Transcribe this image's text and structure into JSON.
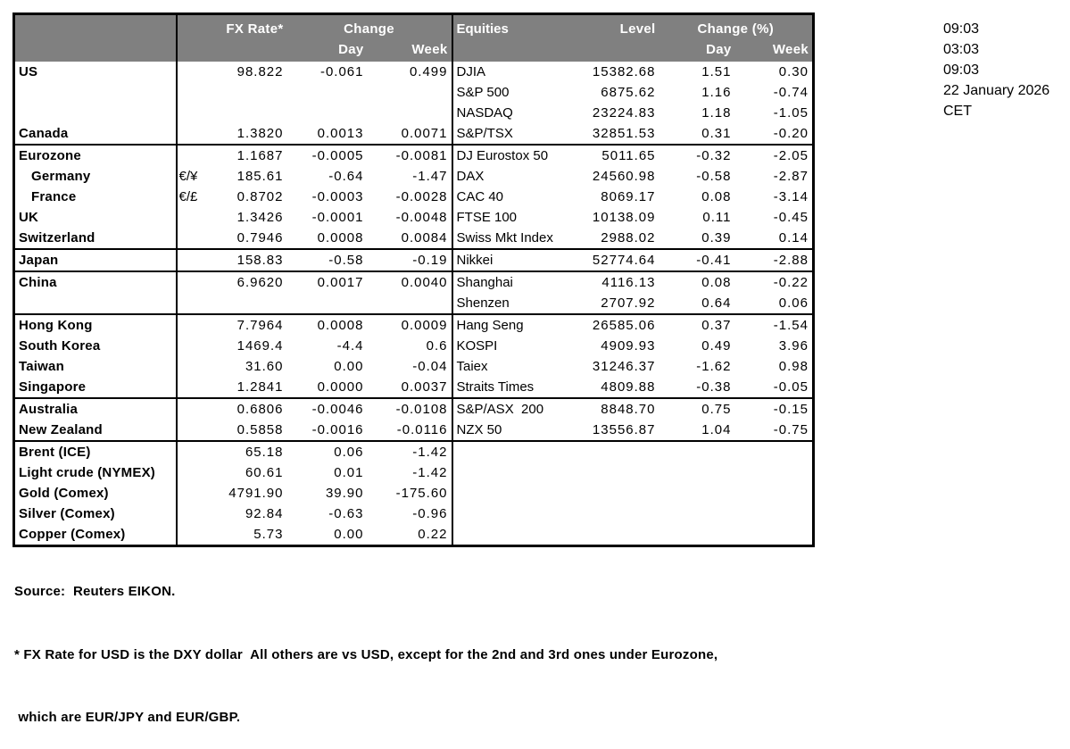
{
  "colors": {
    "header_bg": "#808080",
    "header_text": "#ffffff",
    "border": "#000000"
  },
  "header": {
    "fx_rate": "FX Rate*",
    "change": "Change",
    "day": "Day",
    "week": "Week",
    "equities": "Equities",
    "level": "Level",
    "change_pct": "Change (%)"
  },
  "rows": [
    {
      "country": "US",
      "sym": "",
      "rate": "98.822",
      "day": "-0.061",
      "week": "0.499",
      "equity": "DJIA",
      "level": "15382.68",
      "eq_day": "1.51",
      "eq_week": "0.30",
      "indent": false,
      "section_end": false
    },
    {
      "country": "",
      "sym": "",
      "rate": "",
      "day": "",
      "week": "",
      "equity": "S&P 500",
      "level": "6875.62",
      "eq_day": "1.16",
      "eq_week": "-0.74",
      "indent": false,
      "section_end": false
    },
    {
      "country": "",
      "sym": "",
      "rate": "",
      "day": "",
      "week": "",
      "equity": "NASDAQ",
      "level": "23224.83",
      "eq_day": "1.18",
      "eq_week": "-1.05",
      "indent": false,
      "section_end": false
    },
    {
      "country": "Canada",
      "sym": "",
      "rate": "1.3820",
      "day": "0.0013",
      "week": "0.0071",
      "equity": "S&P/TSX",
      "level": "32851.53",
      "eq_day": "0.31",
      "eq_week": "-0.20",
      "indent": false,
      "section_end": true
    },
    {
      "country": "Eurozone",
      "sym": "",
      "rate": "1.1687",
      "day": "-0.0005",
      "week": "-0.0081",
      "equity": "DJ Eurostox 50",
      "level": "5011.65",
      "eq_day": "-0.32",
      "eq_week": "-2.05",
      "indent": false,
      "section_end": false
    },
    {
      "country": "Germany",
      "sym": "€/¥",
      "rate": "185.61",
      "day": "-0.64",
      "week": "-1.47",
      "equity": "DAX",
      "level": "24560.98",
      "eq_day": "-0.58",
      "eq_week": "-2.87",
      "indent": true,
      "section_end": false
    },
    {
      "country": "France",
      "sym": "€/£",
      "rate": "0.8702",
      "day": "-0.0003",
      "week": "-0.0028",
      "equity": "CAC 40",
      "level": "8069.17",
      "eq_day": "0.08",
      "eq_week": "-3.14",
      "indent": true,
      "section_end": false
    },
    {
      "country": "UK",
      "sym": "",
      "rate": "1.3426",
      "day": "-0.0001",
      "week": "-0.0048",
      "equity": "FTSE 100",
      "level": "10138.09",
      "eq_day": "0.11",
      "eq_week": "-0.45",
      "indent": false,
      "section_end": false
    },
    {
      "country": "Switzerland",
      "sym": "",
      "rate": "0.7946",
      "day": "0.0008",
      "week": "0.0084",
      "equity": "Swiss Mkt Index",
      "level": "2988.02",
      "eq_day": "0.39",
      "eq_week": "0.14",
      "indent": false,
      "section_end": true
    },
    {
      "country": "Japan",
      "sym": "",
      "rate": "158.83",
      "day": "-0.58",
      "week": "-0.19",
      "equity": "Nikkei",
      "level": "52774.64",
      "eq_day": "-0.41",
      "eq_week": "-2.88",
      "indent": false,
      "section_end": true
    },
    {
      "country": "China",
      "sym": "",
      "rate": "6.9620",
      "day": "0.0017",
      "week": "0.0040",
      "equity": "Shanghai",
      "level": "4116.13",
      "eq_day": "0.08",
      "eq_week": "-0.22",
      "indent": false,
      "section_end": false
    },
    {
      "country": "",
      "sym": "",
      "rate": "",
      "day": "",
      "week": "",
      "equity": "Shenzen",
      "level": "2707.92",
      "eq_day": "0.64",
      "eq_week": "0.06",
      "indent": false,
      "section_end": true
    },
    {
      "country": "Hong Kong",
      "sym": "",
      "rate": "7.7964",
      "day": "0.0008",
      "week": "0.0009",
      "equity": "Hang Seng",
      "level": "26585.06",
      "eq_day": "0.37",
      "eq_week": "-1.54",
      "indent": false,
      "section_end": false
    },
    {
      "country": "South Korea",
      "sym": "",
      "rate": "1469.4",
      "day": "-4.4",
      "week": "0.6",
      "equity": "KOSPI",
      "level": "4909.93",
      "eq_day": "0.49",
      "eq_week": "3.96",
      "indent": false,
      "section_end": false
    },
    {
      "country": "Taiwan",
      "sym": "",
      "rate": "31.60",
      "day": "0.00",
      "week": "-0.04",
      "equity": "Taiex",
      "level": "31246.37",
      "eq_day": "-1.62",
      "eq_week": "0.98",
      "indent": false,
      "section_end": false
    },
    {
      "country": "Singapore",
      "sym": "",
      "rate": "1.2841",
      "day": "0.0000",
      "week": "0.0037",
      "equity": "Straits Times",
      "level": "4809.88",
      "eq_day": "-0.38",
      "eq_week": "-0.05",
      "indent": false,
      "section_end": true
    },
    {
      "country": "Australia",
      "sym": "",
      "rate": "0.6806",
      "day": "-0.0046",
      "week": "-0.0108",
      "equity": "S&P/ASX  200",
      "level": "8848.70",
      "eq_day": "0.75",
      "eq_week": "-0.15",
      "indent": false,
      "section_end": false
    },
    {
      "country": "New Zealand",
      "sym": "",
      "rate": "0.5858",
      "day": "-0.0016",
      "week": "-0.0116",
      "equity": "NZX 50",
      "level": "13556.87",
      "eq_day": "1.04",
      "eq_week": "-0.75",
      "indent": false,
      "section_end": true
    },
    {
      "country": "Brent (ICE)",
      "sym": "",
      "rate": "65.18",
      "day": "0.06",
      "week": "-1.42",
      "equity": "",
      "level": "",
      "eq_day": "",
      "eq_week": "",
      "indent": false,
      "section_end": false
    },
    {
      "country": "Light crude (NYMEX)",
      "sym": "",
      "rate": "60.61",
      "day": "0.01",
      "week": "-1.42",
      "equity": "",
      "level": "",
      "eq_day": "",
      "eq_week": "",
      "indent": false,
      "section_end": false
    },
    {
      "country": "Gold (Comex)",
      "sym": "",
      "rate": "4791.90",
      "day": "39.90",
      "week": "-175.60",
      "equity": "",
      "level": "",
      "eq_day": "",
      "eq_week": "",
      "indent": false,
      "section_end": false
    },
    {
      "country": "Silver (Comex)",
      "sym": "",
      "rate": "92.84",
      "day": "-0.63",
      "week": "-0.96",
      "equity": "",
      "level": "",
      "eq_day": "",
      "eq_week": "",
      "indent": false,
      "section_end": false
    },
    {
      "country": "Copper (Comex)",
      "sym": "",
      "rate": "5.73",
      "day": "0.00",
      "week": "0.22",
      "equity": "",
      "level": "",
      "eq_day": "",
      "eq_week": "",
      "indent": false,
      "section_end": false
    }
  ],
  "timestamps": [
    "09:03",
    "03:03",
    "09:03",
    "22 January 2026",
    "CET"
  ],
  "footer": {
    "source": "Source:  Reuters EIKON.",
    "note_line1": "* FX Rate for USD is the DXY dollar  All others are vs USD, except for the 2nd and 3rd ones under Eurozone,",
    "note_line2": " which are EUR/JPY and EUR/GBP."
  }
}
